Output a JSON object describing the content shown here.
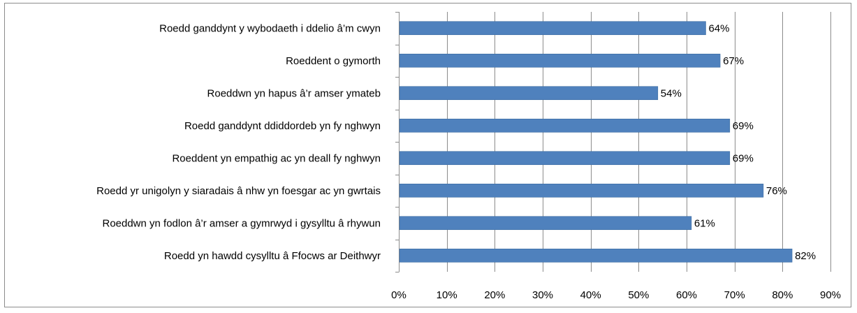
{
  "chart_data": {
    "type": "bar",
    "orientation": "horizontal",
    "categories": [
      "Roedd ganddynt y wybodaeth i ddelio â’m cwyn",
      "Roeddent o gymorth",
      "Roeddwn yn hapus â’r amser ymateb",
      "Roedd ganddynt ddiddordeb yn fy nghwyn",
      "Roeddent yn empathig ac yn deall fy nghwyn",
      "Roedd yr unigolyn y siaradais â nhw yn foesgar ac yn gwrtais",
      "Roeddwn yn fodlon â’r amser a gymrwyd i gysylltu â rhywun",
      "Roedd yn hawdd cysylltu â Ffocws ar Deithwyr"
    ],
    "values": [
      64,
      67,
      54,
      69,
      69,
      76,
      61,
      82
    ],
    "data_labels": [
      "64%",
      "67%",
      "54%",
      "69%",
      "69%",
      "76%",
      "61%",
      "82%"
    ],
    "x_ticks": [
      "0%",
      "10%",
      "20%",
      "30%",
      "40%",
      "50%",
      "60%",
      "70%",
      "80%",
      "90%"
    ],
    "xlim": [
      0,
      90
    ],
    "grid": "vertical",
    "bar_color": "#4f81bd",
    "bar_border_color": "#3a6aa0",
    "grid_color": "#8c8c8c",
    "legend": "none"
  }
}
